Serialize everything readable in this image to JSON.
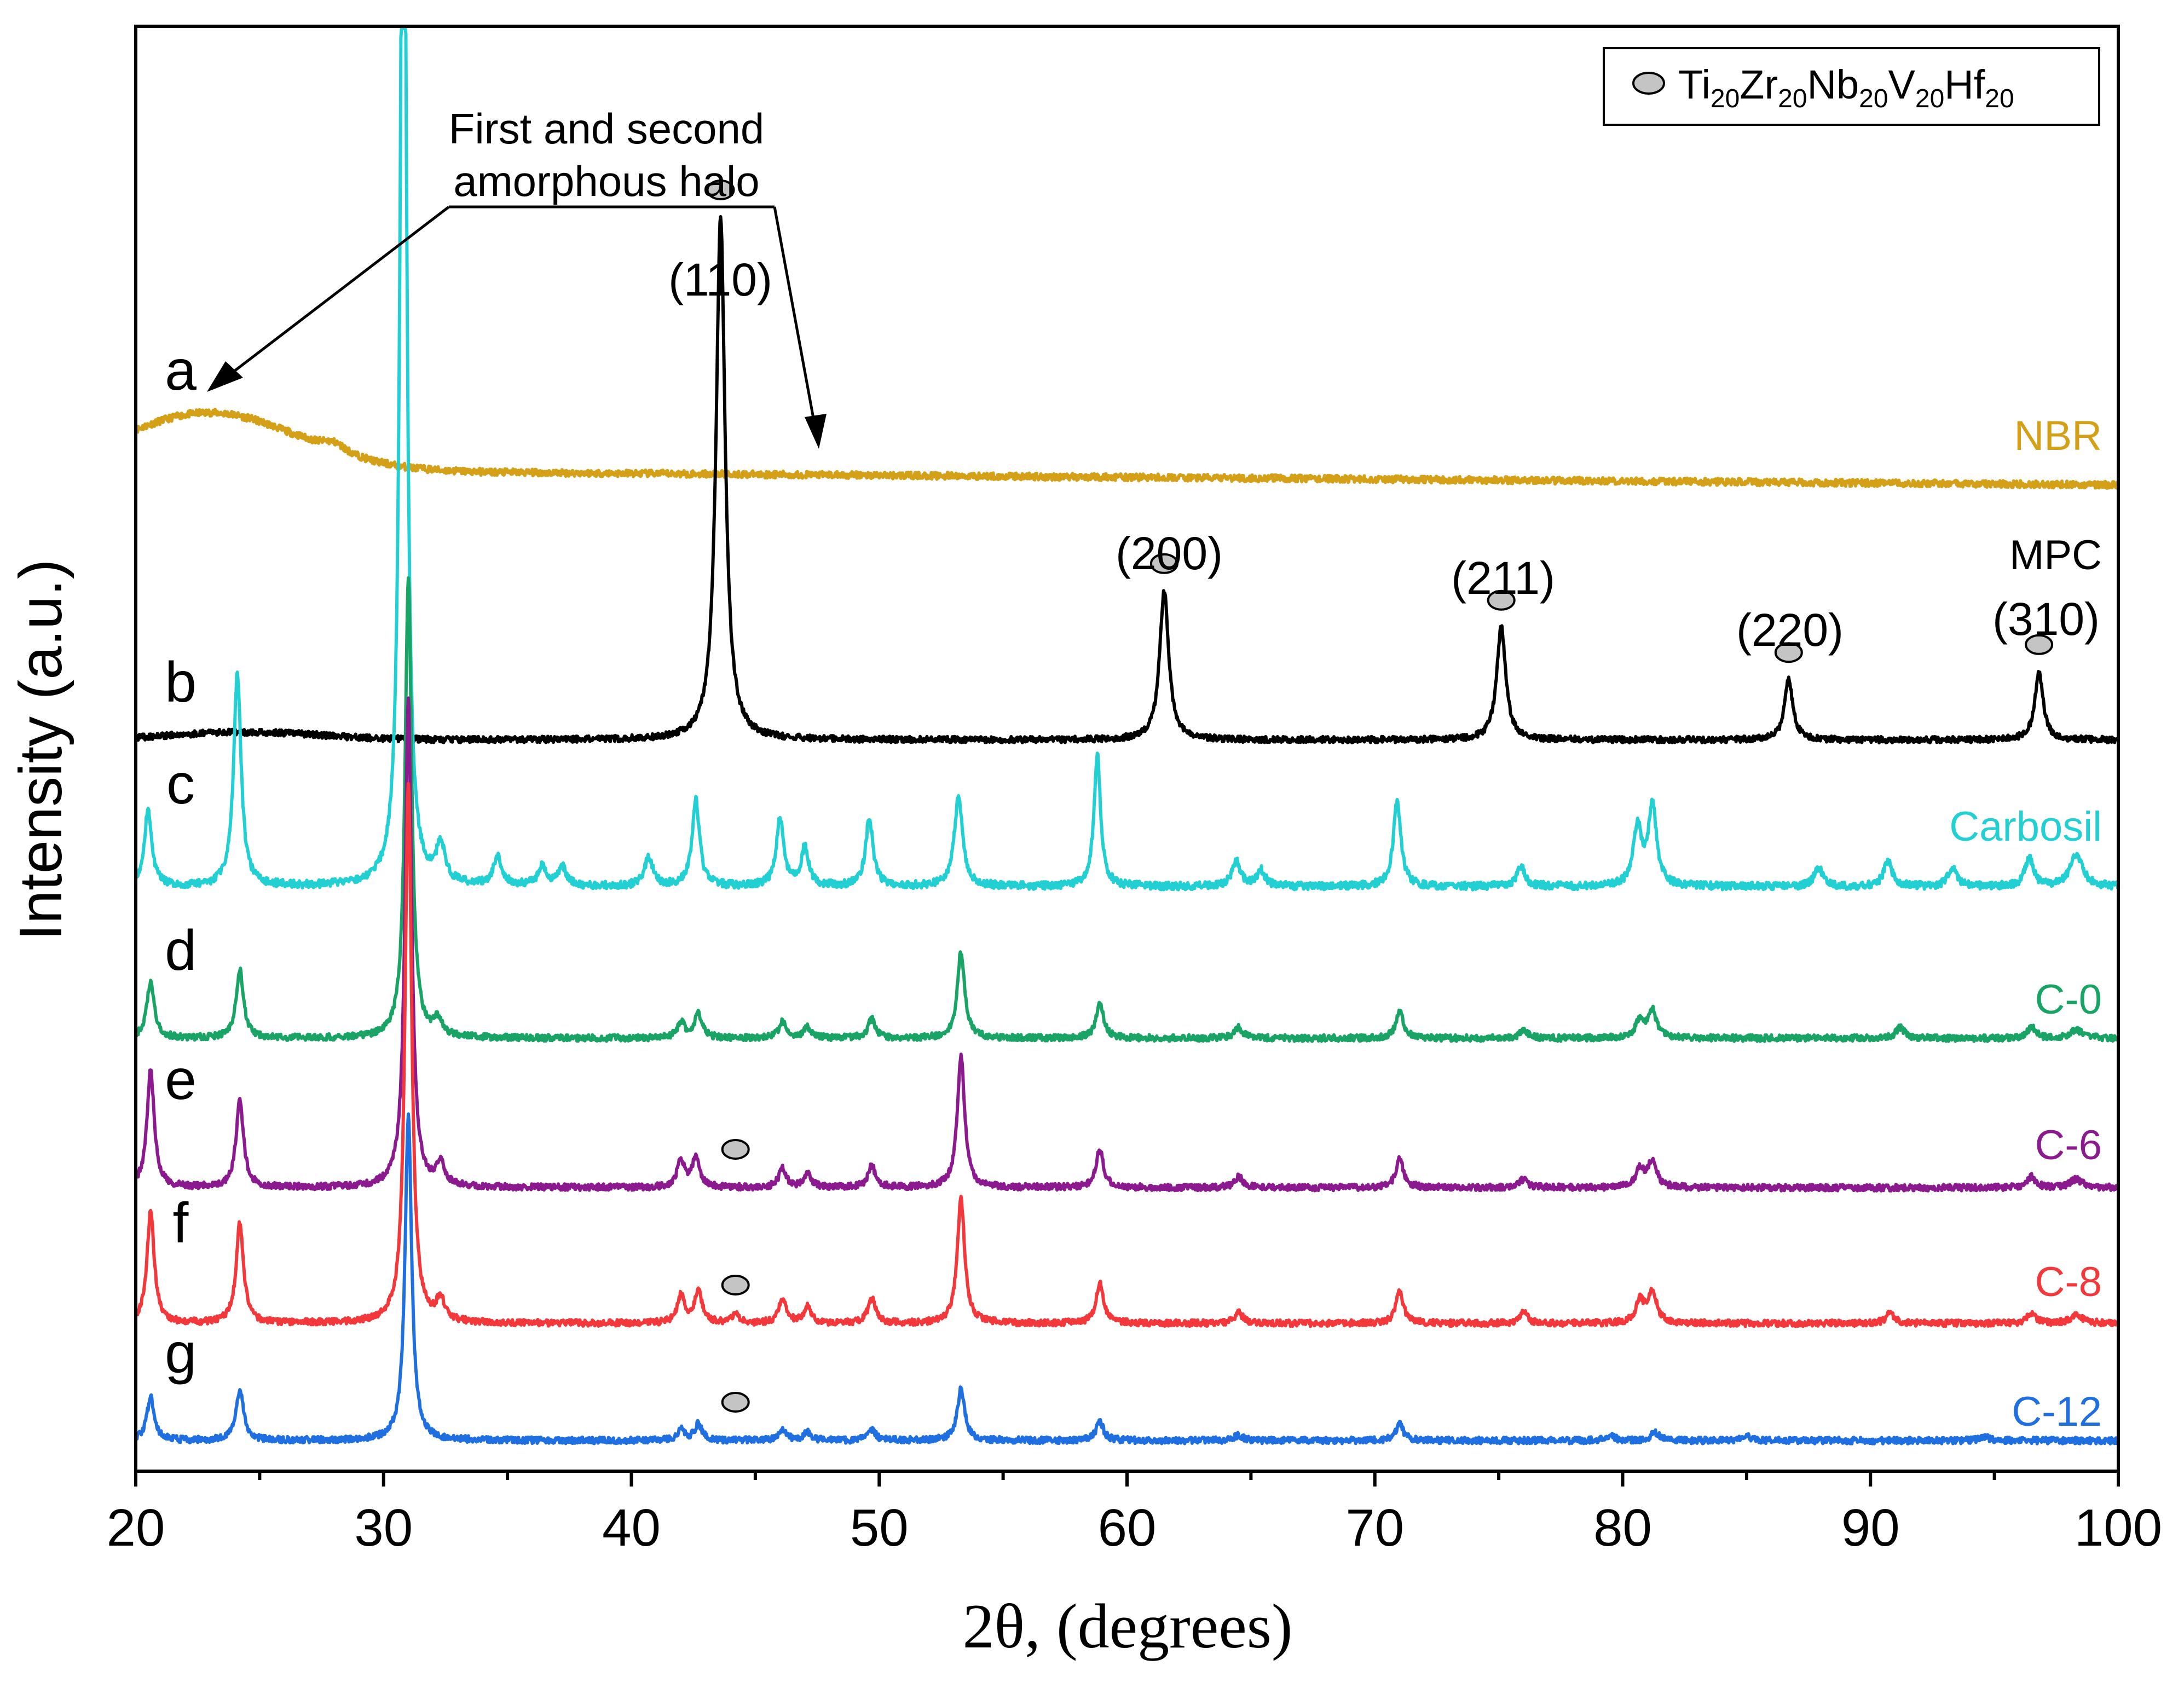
{
  "chart_data": {
    "type": "line",
    "xlabel_symbol": "2θ",
    "xlabel_rest": ", (degrees)",
    "ylabel": "Intensity (a.u.)",
    "xlim": [
      20,
      100
    ],
    "x_ticks": [
      "20",
      "30",
      "40",
      "50",
      "60",
      "70",
      "80",
      "90",
      "100"
    ],
    "legend": {
      "marker": "grey-ellipse",
      "segments": [
        {
          "text": "Ti",
          "sub": "20"
        },
        {
          "text": "Zr",
          "sub": "20"
        },
        {
          "text": "Nb",
          "sub": "20"
        },
        {
          "text": "V",
          "sub": "20"
        },
        {
          "text": "Hf",
          "sub": "20"
        }
      ],
      "position": "top-right"
    },
    "annotation": {
      "line1": "First and second",
      "line2": "amorphous halo",
      "points_to_2theta": [
        22.5,
        47.5
      ]
    },
    "series": [
      {
        "id": "a",
        "name": "NBR",
        "color": "#D4A017",
        "baseline": 0,
        "halo": [
          {
            "center": 23,
            "height": 1.0,
            "width": 3.5
          }
        ],
        "peaks": [
          {
            "x": 28.0,
            "h": 0.15,
            "w": 0.6
          }
        ]
      },
      {
        "id": "b",
        "name": "MPC",
        "color": "#000000",
        "baseline": 0,
        "halo": [
          {
            "center": 24.5,
            "height": 0.15,
            "width": 3
          }
        ],
        "peaks": [
          {
            "x": 43.6,
            "h": 10.0,
            "w": 0.22,
            "hkl": "(110)"
          },
          {
            "x": 61.5,
            "h": 2.85,
            "w": 0.22,
            "hkl": "(200)"
          },
          {
            "x": 75.1,
            "h": 2.15,
            "w": 0.22,
            "hkl": "(211)"
          },
          {
            "x": 86.7,
            "h": 1.15,
            "w": 0.2,
            "hkl": "(220)"
          },
          {
            "x": 96.8,
            "h": 1.3,
            "w": 0.2,
            "hkl": "(310)"
          }
        ]
      },
      {
        "id": "c",
        "name": "Carbosil",
        "color": "#22CFD3",
        "baseline": 0,
        "peaks": [
          {
            "x": 20.5,
            "h": 1.2,
            "w": 0.18
          },
          {
            "x": 24.1,
            "h": 3.3,
            "w": 0.18
          },
          {
            "x": 30.8,
            "h": 20.0,
            "w": 0.14
          },
          {
            "x": 32.3,
            "h": 0.6,
            "w": 0.2
          },
          {
            "x": 34.6,
            "h": 0.45,
            "w": 0.2
          },
          {
            "x": 36.4,
            "h": 0.3,
            "w": 0.2
          },
          {
            "x": 37.2,
            "h": 0.3,
            "w": 0.2
          },
          {
            "x": 40.7,
            "h": 0.45,
            "w": 0.2
          },
          {
            "x": 42.6,
            "h": 1.35,
            "w": 0.18
          },
          {
            "x": 46.0,
            "h": 1.05,
            "w": 0.18
          },
          {
            "x": 47.0,
            "h": 0.6,
            "w": 0.18
          },
          {
            "x": 49.6,
            "h": 1.05,
            "w": 0.18
          },
          {
            "x": 53.2,
            "h": 1.4,
            "w": 0.2
          },
          {
            "x": 58.8,
            "h": 2.05,
            "w": 0.16
          },
          {
            "x": 64.4,
            "h": 0.4,
            "w": 0.2
          },
          {
            "x": 65.4,
            "h": 0.25,
            "w": 0.2
          },
          {
            "x": 70.9,
            "h": 1.35,
            "w": 0.18
          },
          {
            "x": 75.9,
            "h": 0.3,
            "w": 0.2
          },
          {
            "x": 80.6,
            "h": 0.9,
            "w": 0.2
          },
          {
            "x": 81.2,
            "h": 1.25,
            "w": 0.2
          },
          {
            "x": 87.9,
            "h": 0.3,
            "w": 0.2
          },
          {
            "x": 90.7,
            "h": 0.4,
            "w": 0.2
          },
          {
            "x": 93.3,
            "h": 0.3,
            "w": 0.2
          },
          {
            "x": 96.4,
            "h": 0.45,
            "w": 0.2
          },
          {
            "x": 98.3,
            "h": 0.5,
            "w": 0.3
          }
        ]
      },
      {
        "id": "d",
        "name": "C-0",
        "color": "#19A466",
        "baseline": 0,
        "peaks": [
          {
            "x": 20.6,
            "h": 1.05,
            "w": 0.18
          },
          {
            "x": 24.2,
            "h": 1.25,
            "w": 0.18
          },
          {
            "x": 31.0,
            "h": 8.5,
            "w": 0.16
          },
          {
            "x": 32.2,
            "h": 0.3,
            "w": 0.2
          },
          {
            "x": 42.0,
            "h": 0.3,
            "w": 0.18
          },
          {
            "x": 42.7,
            "h": 0.45,
            "w": 0.18
          },
          {
            "x": 46.1,
            "h": 0.3,
            "w": 0.18
          },
          {
            "x": 47.1,
            "h": 0.2,
            "w": 0.18
          },
          {
            "x": 49.7,
            "h": 0.35,
            "w": 0.18
          },
          {
            "x": 53.3,
            "h": 1.6,
            "w": 0.18
          },
          {
            "x": 58.9,
            "h": 0.65,
            "w": 0.18
          },
          {
            "x": 64.5,
            "h": 0.2,
            "w": 0.2
          },
          {
            "x": 71.0,
            "h": 0.5,
            "w": 0.18
          },
          {
            "x": 76.0,
            "h": 0.15,
            "w": 0.2
          },
          {
            "x": 80.7,
            "h": 0.35,
            "w": 0.2
          },
          {
            "x": 81.2,
            "h": 0.5,
            "w": 0.2
          },
          {
            "x": 91.2,
            "h": 0.2,
            "w": 0.2
          },
          {
            "x": 96.5,
            "h": 0.2,
            "w": 0.2
          },
          {
            "x": 98.3,
            "h": 0.15,
            "w": 0.3
          }
        ]
      },
      {
        "id": "e",
        "name": "C-6",
        "color": "#8B1A8F",
        "baseline": 0,
        "peaks": [
          {
            "x": 20.6,
            "h": 2.15,
            "w": 0.18
          },
          {
            "x": 24.2,
            "h": 1.6,
            "w": 0.18
          },
          {
            "x": 31.0,
            "h": 9.0,
            "w": 0.16
          },
          {
            "x": 32.3,
            "h": 0.4,
            "w": 0.2
          },
          {
            "x": 42.0,
            "h": 0.5,
            "w": 0.18
          },
          {
            "x": 42.6,
            "h": 0.55,
            "w": 0.18
          },
          {
            "x": 46.1,
            "h": 0.35,
            "w": 0.18
          },
          {
            "x": 47.1,
            "h": 0.25,
            "w": 0.18
          },
          {
            "x": 49.7,
            "h": 0.4,
            "w": 0.18
          },
          {
            "x": 53.3,
            "h": 2.4,
            "w": 0.18
          },
          {
            "x": 58.9,
            "h": 0.7,
            "w": 0.18
          },
          {
            "x": 64.5,
            "h": 0.2,
            "w": 0.2
          },
          {
            "x": 71.0,
            "h": 0.55,
            "w": 0.18
          },
          {
            "x": 76.0,
            "h": 0.15,
            "w": 0.2
          },
          {
            "x": 80.7,
            "h": 0.35,
            "w": 0.2
          },
          {
            "x": 81.2,
            "h": 0.5,
            "w": 0.2
          },
          {
            "x": 96.5,
            "h": 0.2,
            "w": 0.2
          },
          {
            "x": 98.3,
            "h": 0.15,
            "w": 0.3
          }
        ],
        "phase_marker_2theta": 44.2
      },
      {
        "id": "f",
        "name": "C-8",
        "color": "#F2383A",
        "baseline": 0,
        "peaks": [
          {
            "x": 20.6,
            "h": 2.05,
            "w": 0.18
          },
          {
            "x": 24.2,
            "h": 1.85,
            "w": 0.18
          },
          {
            "x": 31.0,
            "h": 10.0,
            "w": 0.16
          },
          {
            "x": 32.3,
            "h": 0.4,
            "w": 0.2
          },
          {
            "x": 42.0,
            "h": 0.5,
            "w": 0.18
          },
          {
            "x": 42.7,
            "h": 0.6,
            "w": 0.18
          },
          {
            "x": 44.2,
            "h": 0.15,
            "w": 0.18
          },
          {
            "x": 46.1,
            "h": 0.45,
            "w": 0.18
          },
          {
            "x": 47.1,
            "h": 0.3,
            "w": 0.18
          },
          {
            "x": 49.7,
            "h": 0.45,
            "w": 0.18
          },
          {
            "x": 53.3,
            "h": 2.3,
            "w": 0.18
          },
          {
            "x": 58.9,
            "h": 0.75,
            "w": 0.18
          },
          {
            "x": 64.5,
            "h": 0.2,
            "w": 0.2
          },
          {
            "x": 71.0,
            "h": 0.6,
            "w": 0.18
          },
          {
            "x": 76.0,
            "h": 0.2,
            "w": 0.2
          },
          {
            "x": 80.7,
            "h": 0.4,
            "w": 0.2
          },
          {
            "x": 81.2,
            "h": 0.6,
            "w": 0.2
          },
          {
            "x": 90.8,
            "h": 0.2,
            "w": 0.2
          },
          {
            "x": 96.5,
            "h": 0.2,
            "w": 0.2
          },
          {
            "x": 98.3,
            "h": 0.15,
            "w": 0.3
          }
        ],
        "phase_marker_2theta": 44.2
      },
      {
        "id": "g",
        "name": "C-12",
        "color": "#1F6FE0",
        "baseline": 0,
        "peaks": [
          {
            "x": 20.6,
            "h": 0.8,
            "w": 0.18
          },
          {
            "x": 24.2,
            "h": 0.95,
            "w": 0.18
          },
          {
            "x": 31.0,
            "h": 6.0,
            "w": 0.16
          },
          {
            "x": 42.0,
            "h": 0.2,
            "w": 0.18
          },
          {
            "x": 42.7,
            "h": 0.3,
            "w": 0.18
          },
          {
            "x": 46.1,
            "h": 0.2,
            "w": 0.18
          },
          {
            "x": 47.1,
            "h": 0.15,
            "w": 0.18
          },
          {
            "x": 49.7,
            "h": 0.2,
            "w": 0.18
          },
          {
            "x": 53.3,
            "h": 0.95,
            "w": 0.18
          },
          {
            "x": 58.9,
            "h": 0.35,
            "w": 0.18
          },
          {
            "x": 64.5,
            "h": 0.1,
            "w": 0.2
          },
          {
            "x": 71.0,
            "h": 0.3,
            "w": 0.18
          },
          {
            "x": 79.5,
            "h": 0.1,
            "w": 0.2
          },
          {
            "x": 81.3,
            "h": 0.15,
            "w": 0.2
          },
          {
            "x": 85.0,
            "h": 0.08,
            "w": 0.2
          },
          {
            "x": 94.6,
            "h": 0.08,
            "w": 0.2
          }
        ],
        "phase_marker_2theta": 44.2
      }
    ]
  }
}
